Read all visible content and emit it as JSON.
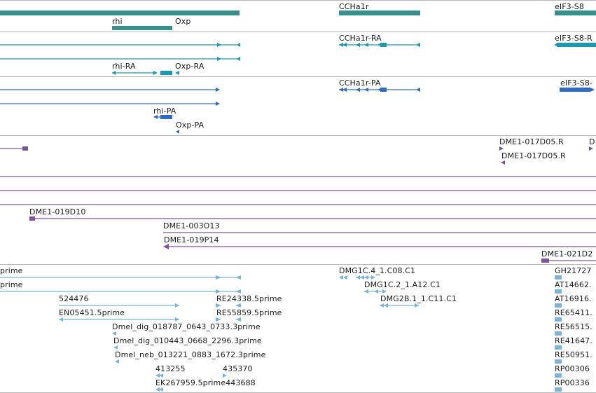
{
  "colors": {
    "gene": "#36918c",
    "transcript": "#1a9ab0",
    "protein": "#2f6cc4",
    "clone": "#7b56a0",
    "cdna": "#7ab4d8",
    "divider": "#b8b8b8"
  },
  "tracks": {
    "genes": {
      "labels": [
        "rhi",
        "Oxp",
        "CCHa1r",
        "eIF3-S8"
      ]
    },
    "transcripts": {
      "labels": [
        "CCHa1r-RA",
        "eIF3-S8-R",
        "rhi-RA",
        "Oxp-RA"
      ]
    },
    "proteins": {
      "labels": [
        "CCHa1r-PA",
        "eIF3-S8-",
        "rhi-PA",
        "Oxp-PA"
      ]
    },
    "clones": {
      "labels": [
        "DME1-017D05.R",
        "D",
        "DME1-017D05.R",
        "DME1-019D10",
        "DME1-003O13",
        "DME1-019P14",
        "DME1-021D2"
      ]
    },
    "cdna": {
      "labels": [
        "prime",
        "DMG1C.4_1.C08.C1",
        "GH21727",
        "prime",
        "DMG1C.2_1.A12.C1",
        "AT14662.",
        "524476",
        "RE24338.5prime",
        "DMG2B.1_1.C11.C1",
        "AT16916.",
        "EN05451.5prime",
        "RE55859.5prime",
        "RE65411.",
        "Dmel_dig_018787_0643_0733.3prime",
        "RE56515.",
        "Dmel_dig_010443_0668_2296.3prime",
        "RE41647.",
        "Dmel_neb_013221_0883_1672.3prime",
        "RE50951.",
        "413255",
        "435370",
        "RP00306",
        "EK267959.5prime443688",
        "RP00336"
      ]
    }
  }
}
